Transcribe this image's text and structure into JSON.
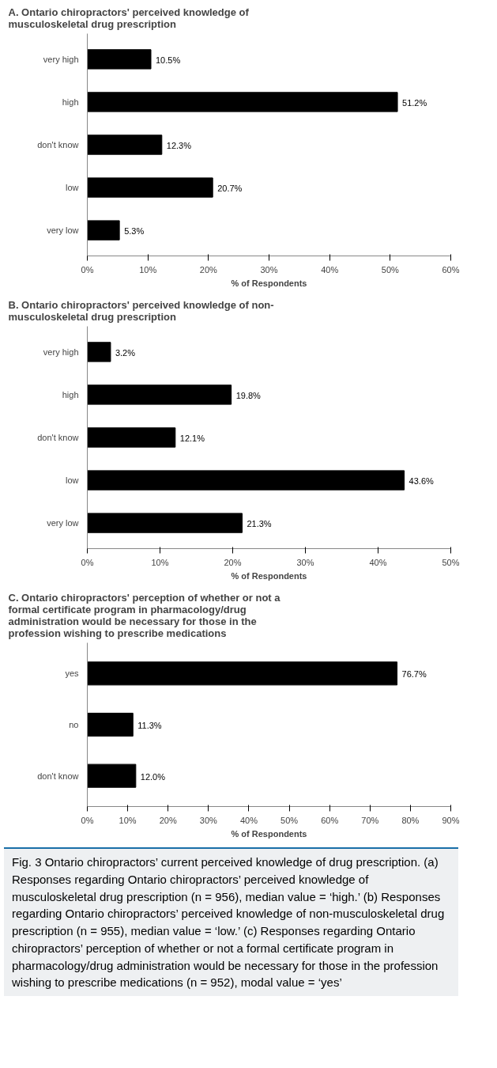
{
  "chart_data": [
    {
      "type": "bar",
      "orientation": "horizontal",
      "title": "A. Ontario chiropractors' perceived knowledge of\n        musculoskeletal drug prescription",
      "xlabel": "% of Respondents",
      "categories": [
        "very high",
        "high",
        "don't know",
        "low",
        "very low"
      ],
      "values": [
        10.5,
        51.2,
        12.3,
        20.7,
        5.3
      ],
      "value_labels": [
        "10.5%",
        "51.2%",
        "12.3%",
        "20.7%",
        "5.3%"
      ],
      "color": "#000000",
      "xlim": [
        0,
        60
      ],
      "xticks": [
        {
          "value": 0,
          "label": "0%"
        },
        {
          "value": 10,
          "label": "10%"
        },
        {
          "value": 20,
          "label": "20%"
        },
        {
          "value": 30,
          "label": "30%"
        },
        {
          "value": 40,
          "label": "40%"
        },
        {
          "value": 50,
          "label": "50%"
        },
        {
          "value": 60,
          "label": "60%"
        }
      ],
      "grid": false
    },
    {
      "type": "bar",
      "orientation": "horizontal",
      "title": "B. Ontario chiropractors' perceived knowledge of non-\n        musculoskeletal drug prescription",
      "xlabel": "% of Respondents",
      "categories": [
        "very high",
        "high",
        "don't know",
        "low",
        "very low"
      ],
      "values": [
        3.2,
        19.8,
        12.1,
        43.6,
        21.3
      ],
      "value_labels": [
        "3.2%",
        "19.8%",
        "12.1%",
        "43.6%",
        "21.3%"
      ],
      "color": "#000000",
      "xlim": [
        0,
        50
      ],
      "xticks": [
        {
          "value": 0,
          "label": "0%"
        },
        {
          "value": 10,
          "label": "10%"
        },
        {
          "value": 20,
          "label": "20%"
        },
        {
          "value": 30,
          "label": "30%"
        },
        {
          "value": 40,
          "label": "40%"
        },
        {
          "value": 50,
          "label": "50%"
        }
      ],
      "grid": false
    },
    {
      "type": "bar",
      "orientation": "horizontal",
      "title": "C. Ontario chiropractors' perception of whether or not a\n    formal certificate program in pharmacology/drug\n    administration would be necessary for those in the\n             profession wishing to prescribe medications",
      "xlabel": "% of Respondents",
      "categories": [
        "yes",
        "no",
        "don't know"
      ],
      "values": [
        76.7,
        11.3,
        12.0
      ],
      "value_labels": [
        "76.7%",
        "11.3%",
        "12.0%"
      ],
      "color": "#000000",
      "xlim": [
        0,
        90
      ],
      "xticks": [
        {
          "value": 0,
          "label": "0%"
        },
        {
          "value": 10,
          "label": "10%"
        },
        {
          "value": 20,
          "label": "20%"
        },
        {
          "value": 30,
          "label": "30%"
        },
        {
          "value": 40,
          "label": "40%"
        },
        {
          "value": 50,
          "label": "50%"
        },
        {
          "value": 60,
          "label": "60%"
        },
        {
          "value": 70,
          "label": "70%"
        },
        {
          "value": 80,
          "label": "80%"
        },
        {
          "value": 90,
          "label": "90%"
        }
      ],
      "grid": false,
      "annotations": [
        "Fig. 3 Ontario chiropractors’ current perceived knowledge of drug prescription. (a) Responses regarding Ontario chiropractors’ perceived knowledge of musculoskeletal drug prescription (n = 956), median value = ‘high.’ (b) Responses regarding Ontario chiropractors’ perceived knowledge of non-musculoskeletal drug prescription (n = 955), median value = ‘low.’ (c) Responses regarding Ontario chiropractors’ perception of whether or not a formal certificate program in pharmacology/drug administration would be necessary for those in the profession wishing to prescribe medications (n = 952), modal value = ‘yes’"
      ]
    }
  ]
}
